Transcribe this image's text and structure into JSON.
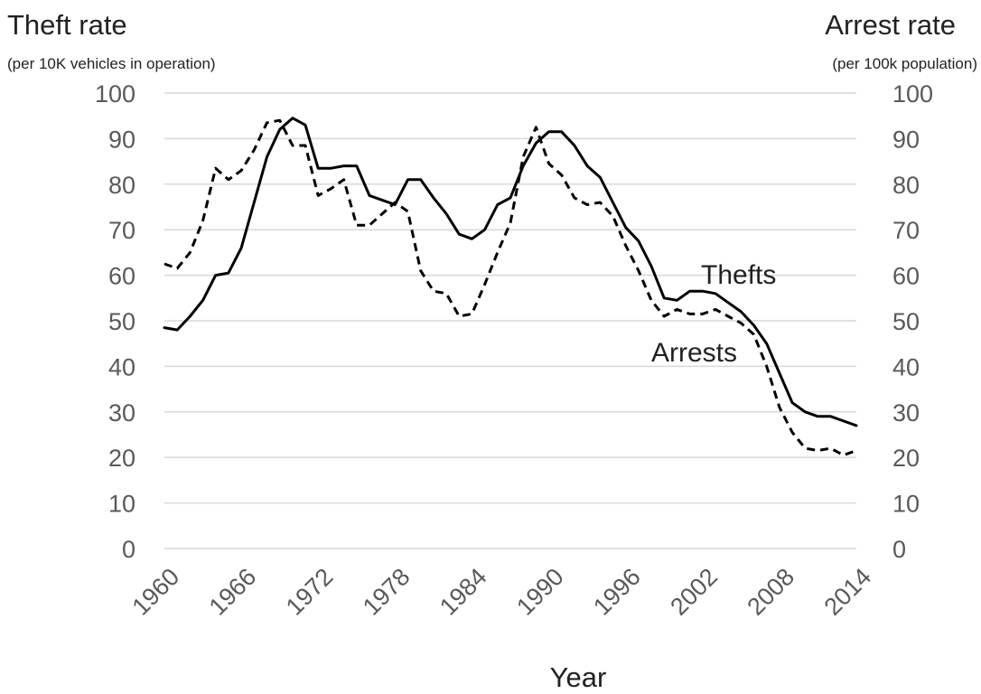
{
  "chart_data": {
    "type": "line",
    "left_axis_title": "Theft rate",
    "left_axis_subtitle": "(per 10K vehicles in operation)",
    "right_axis_title": "Arrest rate",
    "right_axis_subtitle": "(per 100k population)",
    "xlabel": "Year",
    "ylim": [
      0,
      100
    ],
    "y_ticks": [
      "0",
      "10",
      "20",
      "30",
      "40",
      "50",
      "60",
      "70",
      "80",
      "90",
      "100"
    ],
    "x_ticks": [
      "1960",
      "1966",
      "1972",
      "1978",
      "1984",
      "1990",
      "1996",
      "2002",
      "2008",
      "2014"
    ],
    "x_range": [
      1960,
      2014
    ],
    "grid": true,
    "series": [
      {
        "name": "Thefts",
        "style": "solid",
        "x": [
          1960,
          1961,
          1962,
          1963,
          1964,
          1965,
          1966,
          1967,
          1968,
          1969,
          1970,
          1971,
          1972,
          1973,
          1974,
          1975,
          1976,
          1977,
          1978,
          1979,
          1980,
          1981,
          1982,
          1983,
          1984,
          1985,
          1986,
          1987,
          1988,
          1989,
          1990,
          1991,
          1992,
          1993,
          1994,
          1995,
          1996,
          1997,
          1998,
          1999,
          2000,
          2001,
          2002,
          2003,
          2004,
          2005,
          2006,
          2007,
          2008,
          2009,
          2010,
          2011,
          2012,
          2013,
          2014
        ],
        "values": [
          48.5,
          48,
          51,
          54.5,
          60,
          60.5,
          66,
          76,
          86,
          92,
          94.5,
          93,
          83.5,
          83.5,
          84,
          84,
          77.5,
          76.5,
          75.5,
          81,
          81,
          77,
          73.5,
          69,
          68,
          70,
          75.5,
          77,
          84,
          89,
          91.5,
          91.5,
          88.5,
          84,
          81.5,
          76,
          70.5,
          67.5,
          62,
          55,
          54.5,
          56.5,
          56.5,
          56,
          54,
          52,
          49,
          45,
          38.5,
          32,
          30,
          29,
          29,
          28,
          27
        ]
      },
      {
        "name": "Arrests",
        "style": "dashed",
        "x": [
          1960,
          1961,
          1962,
          1963,
          1964,
          1965,
          1966,
          1967,
          1968,
          1969,
          1970,
          1971,
          1972,
          1973,
          1974,
          1975,
          1976,
          1977,
          1978,
          1979,
          1980,
          1981,
          1982,
          1983,
          1984,
          1985,
          1986,
          1987,
          1988,
          1989,
          1990,
          1991,
          1992,
          1993,
          1994,
          1995,
          1996,
          1997,
          1998,
          1999,
          2000,
          2001,
          2002,
          2003,
          2004,
          2005,
          2006,
          2007,
          2008,
          2009,
          2010,
          2011,
          2012,
          2013,
          2014
        ],
        "values": [
          62.5,
          61.5,
          65,
          72,
          83.5,
          81,
          83,
          87.5,
          93.5,
          94,
          88.5,
          88.5,
          77.5,
          79,
          81,
          71,
          71,
          73.5,
          76,
          74,
          61,
          56.5,
          56,
          51,
          51.5,
          58,
          65,
          71.5,
          86,
          92.5,
          84.5,
          82,
          77,
          75.5,
          76,
          73,
          66.5,
          61,
          54.5,
          51,
          52.5,
          51.5,
          51.5,
          52.5,
          51,
          49.5,
          47,
          40,
          31,
          25.5,
          22,
          21.5,
          22,
          20.5,
          21.5
        ]
      }
    ],
    "annotations": [
      {
        "text": "Thefts",
        "near_year": 2007
      },
      {
        "text": "Arrests",
        "near_year": 2003
      }
    ]
  }
}
